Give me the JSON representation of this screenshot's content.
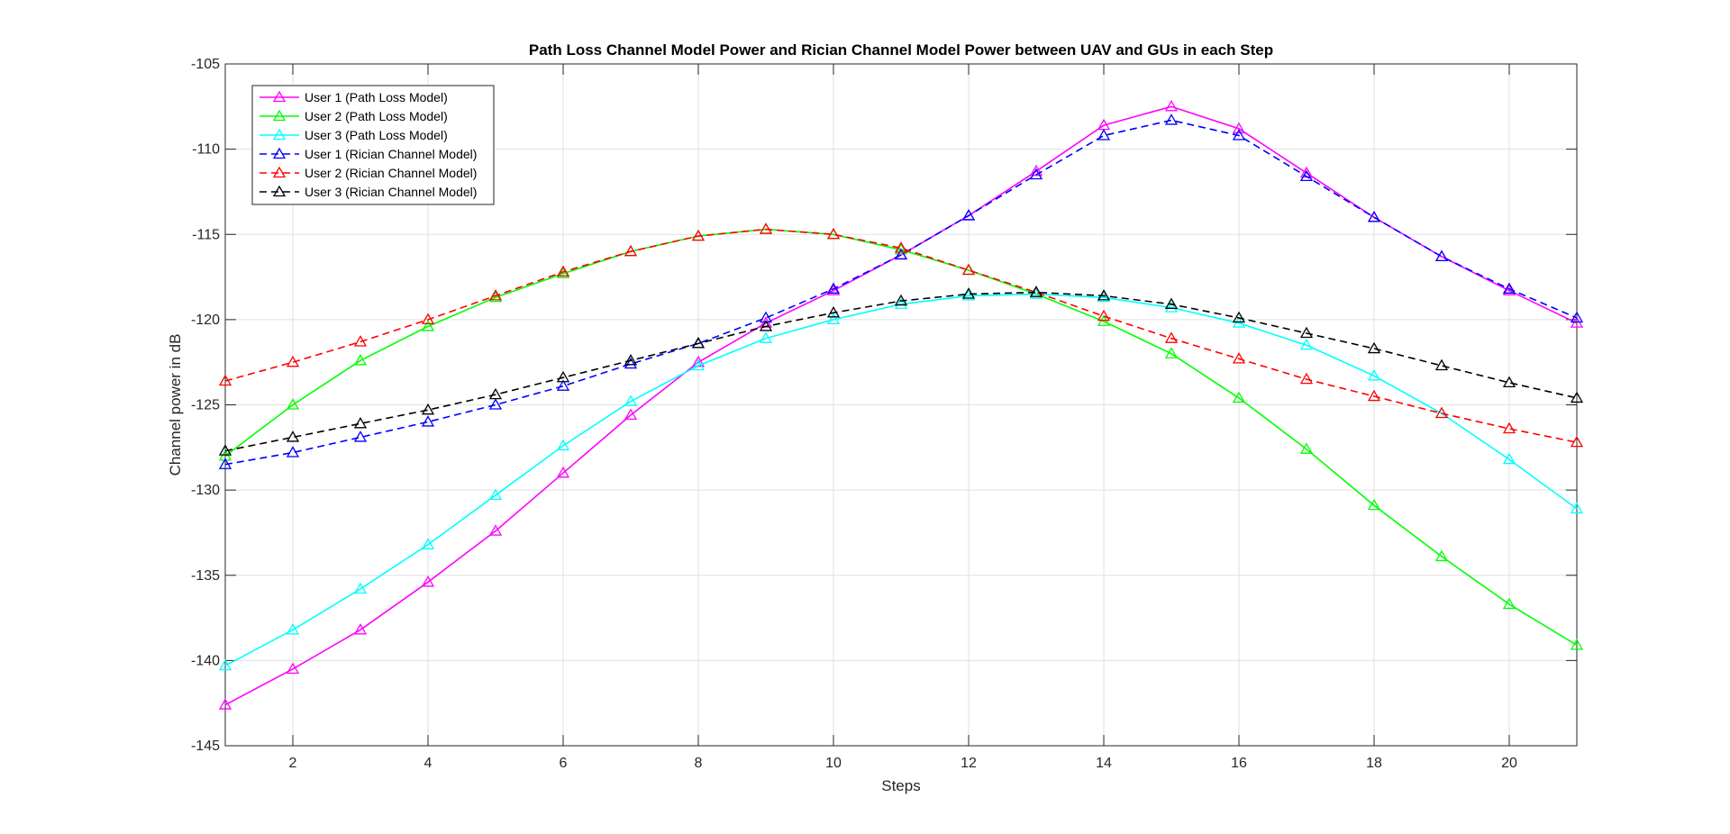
{
  "chart_data": {
    "type": "line",
    "title": "Path Loss Channel Model Power and Rician Channel Model Power between UAV and GUs in each Step",
    "xlabel": "Steps",
    "ylabel": "Channel power in dB",
    "xlim": [
      1,
      21
    ],
    "ylim": [
      -145,
      -105
    ],
    "xticks": [
      2,
      4,
      6,
      8,
      10,
      12,
      14,
      16,
      18,
      20
    ],
    "yticks": [
      -145,
      -140,
      -135,
      -130,
      -125,
      -120,
      -115,
      -110,
      -105
    ],
    "grid": true,
    "legend_position": "top-left",
    "x": [
      1,
      2,
      3,
      4,
      5,
      6,
      7,
      8,
      9,
      10,
      11,
      12,
      13,
      14,
      15,
      16,
      17,
      18,
      19,
      20,
      21
    ],
    "series": [
      {
        "name": "User 1 (Path Loss Model)",
        "color": "#ff00ff",
        "dashed": false,
        "values": [
          -142.6,
          -140.5,
          -138.2,
          -135.4,
          -132.4,
          -129.0,
          -125.6,
          -122.5,
          -120.2,
          -118.3,
          -116.2,
          -113.9,
          -111.3,
          -108.6,
          -107.5,
          -108.8,
          -111.4,
          -114.0,
          -116.3,
          -118.3,
          -120.2
        ]
      },
      {
        "name": "User 2 (Path Loss Model)",
        "color": "#00ff00",
        "dashed": false,
        "values": [
          -128.0,
          -125.0,
          -122.4,
          -120.4,
          -118.7,
          -117.3,
          -116.0,
          -115.1,
          -114.7,
          -115.0,
          -115.9,
          -117.1,
          -118.5,
          -120.1,
          -122.0,
          -124.6,
          -127.6,
          -130.9,
          -133.9,
          -136.7,
          -139.1
        ]
      },
      {
        "name": "User 3 (Path Loss Model)",
        "color": "#00ffff",
        "dashed": false,
        "values": [
          -140.3,
          -138.2,
          -135.8,
          -133.2,
          -130.3,
          -127.4,
          -124.8,
          -122.7,
          -121.1,
          -120.0,
          -119.1,
          -118.6,
          -118.5,
          -118.7,
          -119.3,
          -120.2,
          -121.5,
          -123.3,
          -125.5,
          -128.2,
          -131.1
        ]
      },
      {
        "name": "User 1 (Rician Channel Model)",
        "color": "#0000ff",
        "dashed": true,
        "values": [
          -128.5,
          -127.8,
          -126.9,
          -126.0,
          -125.0,
          -123.9,
          -122.6,
          -121.4,
          -119.9,
          -118.2,
          -116.2,
          -113.9,
          -111.5,
          -109.2,
          -108.3,
          -109.2,
          -111.6,
          -114.0,
          -116.3,
          -118.2,
          -119.9
        ]
      },
      {
        "name": "User 2 (Rician Channel Model)",
        "color": "#ff0000",
        "dashed": true,
        "values": [
          -123.6,
          -122.5,
          -121.3,
          -120.0,
          -118.6,
          -117.2,
          -116.0,
          -115.1,
          -114.7,
          -115.0,
          -115.8,
          -117.1,
          -118.4,
          -119.8,
          -121.1,
          -122.3,
          -123.5,
          -124.5,
          -125.5,
          -126.4,
          -127.2
        ]
      },
      {
        "name": "User 3 (Rician Channel Model)",
        "color": "#000000",
        "dashed": true,
        "values": [
          -127.7,
          -126.9,
          -126.1,
          -125.3,
          -124.4,
          -123.4,
          -122.4,
          -121.4,
          -120.4,
          -119.6,
          -118.9,
          -118.5,
          -118.4,
          -118.6,
          -119.1,
          -119.9,
          -120.8,
          -121.7,
          -122.7,
          -123.7,
          -124.6
        ]
      }
    ]
  }
}
